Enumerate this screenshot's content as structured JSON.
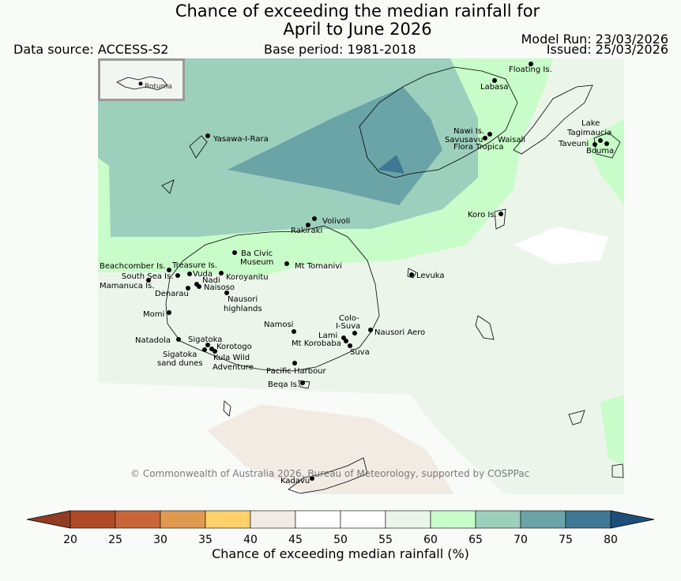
{
  "title_line1": "Chance of exceeding the median rainfall for",
  "title_line2": "April to June 2026",
  "data_source": "Data source: ACCESS-S2",
  "base_period": "Base period: 1981-2018",
  "model_run": "Model Run: 23/03/2026",
  "issued": "Issued: 25/03/2026",
  "inset_label": "Rotuma",
  "copyright": "© Commonwealth of Australia 2026, Bureau of Meteorology, supported by COSPPac",
  "colorbar": {
    "title": "Chance of exceeding median rainfall (%)",
    "ticks": [
      "20",
      "25",
      "30",
      "35",
      "40",
      "45",
      "50",
      "55",
      "60",
      "65",
      "70",
      "75",
      "80"
    ],
    "colors": [
      "#b04a26",
      "#c8663a",
      "#e09a50",
      "#fdd06a",
      "#f2ebe4",
      "#ffffff",
      "#ffffff",
      "#ebf5ea",
      "#c8fcc8",
      "#9ccfbc",
      "#6aa4a6",
      "#3e7894"
    ],
    "under_color": "#923b22",
    "over_color": "#1f4f78"
  },
  "places": [
    {
      "name": "Floating Is."
    },
    {
      "name": "Labasa"
    },
    {
      "name": "Nawi Is."
    },
    {
      "name": "Savusavu"
    },
    {
      "name": "Waisali"
    },
    {
      "name": "Flora Tropica"
    },
    {
      "name": "Lake"
    },
    {
      "name": "Tagimaucia"
    },
    {
      "name": "Taveuni"
    },
    {
      "name": "Bouma"
    },
    {
      "name": "Yasawa-I-Rara"
    },
    {
      "name": "Koro Is."
    },
    {
      "name": "Volivoli"
    },
    {
      "name": "Rakiraki"
    },
    {
      "name": "Ba Civic"
    },
    {
      "name": "Museum"
    },
    {
      "name": "Mt Tomanivi"
    },
    {
      "name": "Levuka"
    },
    {
      "name": "Beachcomber Is."
    },
    {
      "name": "Treasure Is."
    },
    {
      "name": "South Sea Is."
    },
    {
      "name": "Vuda"
    },
    {
      "name": "Koroyanitu"
    },
    {
      "name": "Nadi"
    },
    {
      "name": "Mamanuca Is."
    },
    {
      "name": "Naisoso"
    },
    {
      "name": "Denarau"
    },
    {
      "name": "Nausori"
    },
    {
      "name": "highlands"
    },
    {
      "name": "Momi"
    },
    {
      "name": "Colo-"
    },
    {
      "name": "I-Suva"
    },
    {
      "name": "Namosi"
    },
    {
      "name": "Nausori Aero"
    },
    {
      "name": "Lami"
    },
    {
      "name": "Natadola"
    },
    {
      "name": "Sigatoka"
    },
    {
      "name": "Mt Korobaba"
    },
    {
      "name": "Suva"
    },
    {
      "name": "Korotogo"
    },
    {
      "name": "Sigatoka"
    },
    {
      "name": "Kula Wild"
    },
    {
      "name": "sand dunes"
    },
    {
      "name": "Adventure"
    },
    {
      "name": "Pacific Harbour"
    },
    {
      "name": "Beqa Is."
    },
    {
      "name": "Kadavu"
    }
  ]
}
